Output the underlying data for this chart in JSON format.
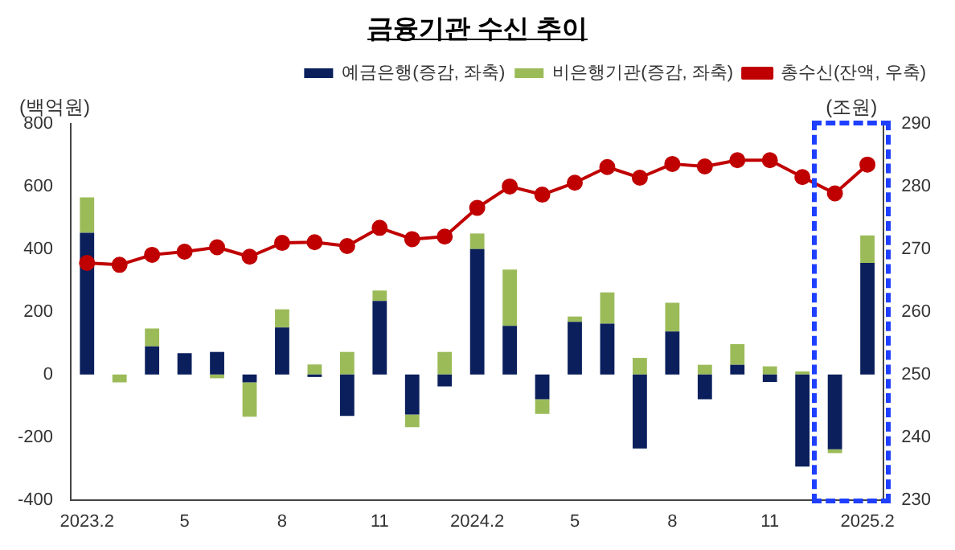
{
  "chart_data": {
    "type": "bar",
    "title": "금융기관 수신 추이",
    "ylabel": "(백억원)",
    "y2label": "(조원)",
    "categories": [
      "2023.2",
      null,
      null,
      "5",
      null,
      null,
      "8",
      null,
      null,
      "11",
      null,
      null,
      "2024.2",
      null,
      null,
      "5",
      null,
      null,
      "8",
      null,
      null,
      "11",
      null,
      null,
      "2025.2"
    ],
    "stacked": true,
    "series": [
      {
        "name": "예금은행(증감, 좌축)",
        "color": "#0a1f5c",
        "values": [
          452,
          0,
          90,
          68,
          72,
          -25,
          150,
          -8,
          -132,
          235,
          -128,
          -38,
          400,
          155,
          -79,
          168,
          162,
          -236,
          137,
          -79,
          31,
          -24,
          -294,
          -239,
          356
        ]
      },
      {
        "name": "비은행기관(증감, 좌축)",
        "color": "#9bbb59",
        "values": [
          113,
          -25,
          57,
          0,
          -12,
          -110,
          58,
          32,
          72,
          33,
          -40,
          72,
          50,
          180,
          -47,
          17,
          100,
          53,
          92,
          31,
          66,
          26,
          10,
          -12,
          88
        ]
      },
      {
        "name": "총수신(잔액, 우축)",
        "color": "#c00000",
        "type": "line",
        "axis": "y2",
        "marker": "circle",
        "values": [
          267.8,
          267.5,
          269.1,
          269.6,
          270.3,
          268.8,
          271.0,
          271.1,
          270.5,
          273.4,
          271.6,
          272.0,
          276.6,
          280.0,
          278.7,
          280.6,
          283.1,
          281.4,
          283.6,
          283.2,
          284.2,
          284.2,
          281.5,
          278.9,
          283.5
        ]
      }
    ],
    "ylim": [
      -400,
      800
    ],
    "yticks": [
      -400,
      -200,
      0,
      200,
      400,
      600,
      800
    ],
    "y2lim": [
      230,
      290
    ],
    "y2ticks": [
      230,
      240,
      250,
      260,
      270,
      280,
      290
    ],
    "legend": "top",
    "grid": false
  }
}
